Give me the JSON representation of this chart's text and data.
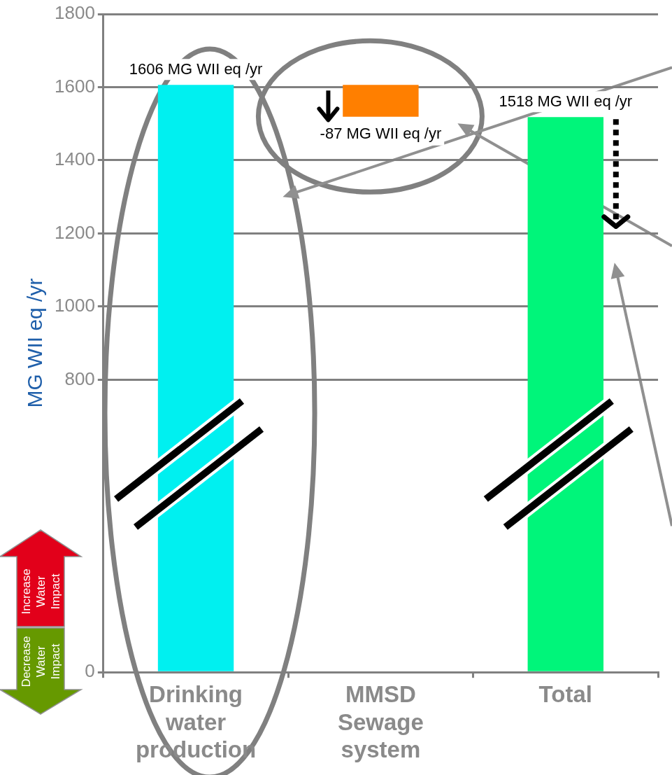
{
  "chart_data": {
    "type": "bar",
    "ylabel": "MG WII eq /yr",
    "categories": [
      "Drinking water production",
      "MMSD Sewage system",
      "Total"
    ],
    "values": [
      1606,
      -87,
      1518
    ],
    "base": [
      0,
      1606,
      0
    ],
    "colors": [
      "#00f0f0",
      "#ff7f00",
      "#00f57a"
    ],
    "value_labels": [
      "1606 MG WII eq /yr",
      "-87 MG WII eq /yr",
      "1518 MG WII eq /yr"
    ],
    "ylim": [
      0,
      1800
    ],
    "yticks": [
      0,
      800,
      1000,
      1200,
      1400,
      1600,
      1800
    ],
    "grid": "y",
    "annotations": [
      "Increase Water Impact",
      "Decrease Water Impact"
    ]
  }
}
